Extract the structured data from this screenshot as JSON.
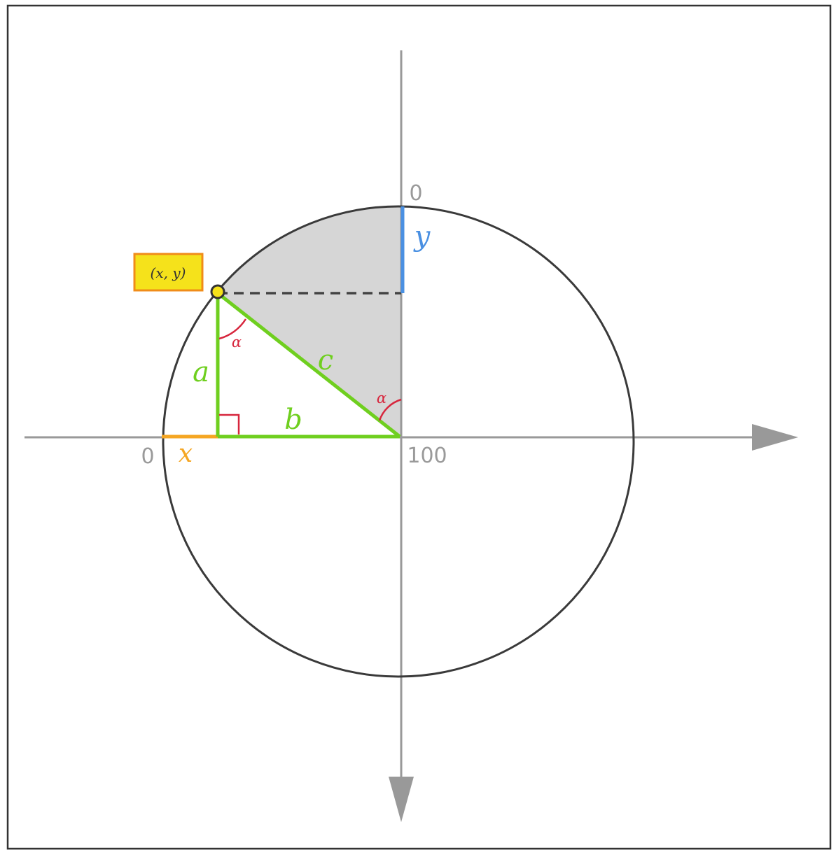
{
  "diagram": {
    "point_label": "(x, y)",
    "angle_label_top": "α",
    "angle_label_center": "α",
    "side_a": "a",
    "side_b": "b",
    "side_c": "c",
    "x_label": "x",
    "y_label": "y",
    "tick_origin_left": "0",
    "tick_origin_top": "0",
    "tick_center": "100"
  },
  "colors": {
    "triangle": "#6fcf1f",
    "x_segment": "#f5a623",
    "y_segment": "#4a90e2",
    "angle_marks": "#d7263d",
    "point_fill": "#f5e21b",
    "label_box_fill": "#f5e21b",
    "label_box_border": "#f08c1a",
    "axes": "#999999",
    "circle": "#3a3a3a",
    "shaded_sector": "#d6d6d6"
  }
}
